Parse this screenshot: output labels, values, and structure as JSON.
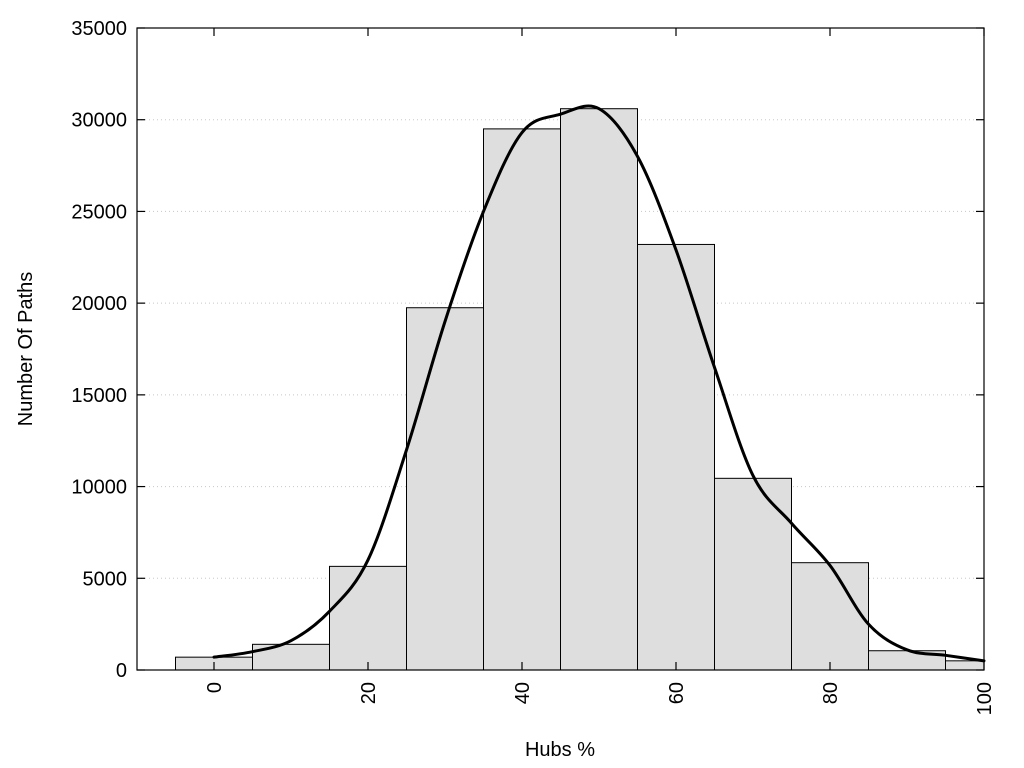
{
  "chart_data": {
    "type": "bar",
    "xlabel": "Hubs %",
    "ylabel": "Number Of Paths",
    "xlim": [
      -10,
      100
    ],
    "ylim": [
      0,
      35000
    ],
    "x_ticks": [
      0,
      20,
      40,
      60,
      80,
      100
    ],
    "y_ticks": [
      0,
      5000,
      10000,
      15000,
      20000,
      25000,
      30000,
      35000
    ],
    "grid": "horizontal-dotted",
    "bin_width": 10,
    "bins": [
      {
        "center": 0,
        "value": 700
      },
      {
        "center": 10,
        "value": 1400
      },
      {
        "center": 20,
        "value": 5650
      },
      {
        "center": 30,
        "value": 19750
      },
      {
        "center": 40,
        "value": 29500
      },
      {
        "center": 50,
        "value": 30600
      },
      {
        "center": 60,
        "value": 23200
      },
      {
        "center": 70,
        "value": 10450
      },
      {
        "center": 80,
        "value": 5850
      },
      {
        "center": 90,
        "value": 1050
      },
      {
        "center": 100,
        "value": 500
      }
    ],
    "curve": {
      "x": [
        0,
        5,
        10,
        15,
        20,
        25,
        30,
        35,
        40,
        45,
        50,
        55,
        60,
        65,
        70,
        75,
        80,
        85,
        90,
        95,
        100
      ],
      "y": [
        700,
        1000,
        1600,
        3200,
        6000,
        12000,
        19000,
        25000,
        29300,
        30300,
        30600,
        28000,
        22900,
        16500,
        10600,
        8000,
        5700,
        2500,
        1100,
        800,
        500
      ]
    },
    "colors": {
      "bar_fill": "#dedede",
      "bar_stroke": "#000000",
      "curve": "#000000"
    }
  }
}
